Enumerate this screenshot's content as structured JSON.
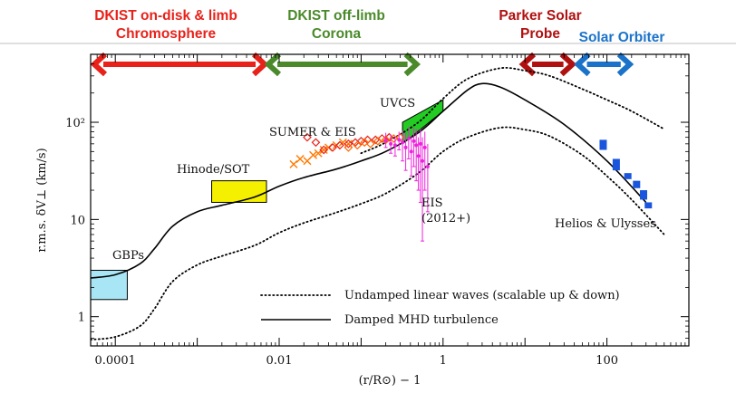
{
  "chart_data": {
    "type": "line",
    "xlabel": "(r/R⊙) − 1",
    "ylabel": "r.m.s.  δV⊥  (km/s)",
    "xscale": "log",
    "yscale": "log",
    "xlim": [
      5e-05,
      1000
    ],
    "ylim": [
      0.5,
      500
    ],
    "x_ticks": [
      "0.0001",
      "0.01",
      "1",
      "100"
    ],
    "y_ticks": [
      "1",
      "10",
      "10²"
    ],
    "legend": {
      "placement": "bottom-right",
      "entries": [
        {
          "label": "Undamped linear waves (scalable up & down)",
          "style": "dotted"
        },
        {
          "label": "Damped MHD turbulence",
          "style": "solid"
        }
      ]
    },
    "series": [
      {
        "id": "damped",
        "style": "solid",
        "color": "#000000",
        "x": [
          5e-05,
          0.0001,
          0.0002,
          0.0003,
          0.0005,
          0.001,
          0.002,
          0.005,
          0.01,
          0.02,
          0.05,
          0.1,
          0.2,
          0.5,
          1,
          2,
          3,
          5,
          10,
          30,
          100,
          300
        ],
        "y": [
          2.5,
          2.7,
          3.5,
          5,
          8.5,
          12,
          14,
          17,
          22,
          27,
          33,
          40,
          50,
          78,
          130,
          215,
          250,
          230,
          170,
          95,
          40,
          15
        ]
      },
      {
        "id": "undamped-upper",
        "style": "dotted",
        "color": "#000000",
        "x": [
          0.1,
          0.2,
          0.5,
          1,
          2,
          5,
          10,
          20,
          50,
          100,
          200,
          500
        ],
        "y": [
          48,
          62,
          100,
          175,
          280,
          360,
          340,
          300,
          220,
          170,
          130,
          85
        ]
      },
      {
        "id": "undamped-lower",
        "style": "dotted",
        "color": "#000000",
        "x": [
          5e-05,
          0.0001,
          0.0002,
          0.0003,
          0.0005,
          0.001,
          0.002,
          0.005,
          0.01,
          0.02,
          0.05,
          0.1,
          0.2,
          0.5,
          1,
          2,
          5,
          10,
          20,
          50,
          100,
          200,
          500
        ],
        "y": [
          0.58,
          0.62,
          0.8,
          1.2,
          2.3,
          3.4,
          4.2,
          5.4,
          7.3,
          9.2,
          11.8,
          14.5,
          18.5,
          30,
          50,
          70,
          88,
          84,
          72,
          46,
          28,
          16,
          7
        ]
      }
    ],
    "observations": [
      {
        "name": "GBPs",
        "kind": "box",
        "color": "#a8e6f5",
        "x": [
          5e-05,
          0.00014
        ],
        "y": [
          1.5,
          3
        ]
      },
      {
        "name": "Hinode/SOT",
        "kind": "box",
        "color": "#f5f000",
        "x": [
          0.0015,
          0.007
        ],
        "y": [
          15,
          25
        ]
      },
      {
        "name": "UVCS",
        "kind": "band",
        "color": "#22cc22",
        "x": [
          0.32,
          1
        ],
        "y_low": [
          60,
          130
        ],
        "y_high": [
          100,
          170
        ]
      },
      {
        "name": "SUMER & EIS",
        "kind": "markers",
        "markers": [
          {
            "marker": "x",
            "color": "#ff7a00",
            "x": [
              0.015,
              0.018,
              0.022,
              0.026,
              0.03,
              0.035,
              0.04,
              0.05,
              0.06,
              0.07
            ],
            "y": [
              37,
              42,
              40,
              46,
              48,
              52,
              55,
              58,
              62,
              60
            ]
          },
          {
            "marker": "diamond",
            "color": "#e8211a",
            "x": [
              0.022,
              0.028,
              0.035,
              0.045,
              0.055,
              0.07,
              0.085,
              0.1,
              0.12,
              0.15,
              0.18,
              0.22
            ],
            "y": [
              70,
              62,
              52,
              55,
              58,
              60,
              62,
              64,
              66,
              66,
              68,
              70
            ]
          },
          {
            "marker": "diamond",
            "color": "#ff6600",
            "x": [
              0.07,
              0.09,
              0.11,
              0.13,
              0.16,
              0.2,
              0.25,
              0.3
            ],
            "y": [
              55,
              58,
              62,
              60,
              64,
              66,
              68,
              70
            ]
          }
        ]
      },
      {
        "name": "EIS\n(2012+)",
        "kind": "errorbars",
        "color": "#ee22dd",
        "points": [
          {
            "x": 0.2,
            "y": 65,
            "lo": 55,
            "hi": 78
          },
          {
            "x": 0.23,
            "y": 60,
            "lo": 48,
            "hi": 75
          },
          {
            "x": 0.26,
            "y": 58,
            "lo": 45,
            "hi": 72
          },
          {
            "x": 0.29,
            "y": 66,
            "lo": 52,
            "hi": 80
          },
          {
            "x": 0.32,
            "y": 62,
            "lo": 40,
            "hi": 82
          },
          {
            "x": 0.35,
            "y": 55,
            "lo": 32,
            "hi": 78
          },
          {
            "x": 0.38,
            "y": 68,
            "lo": 42,
            "hi": 90
          },
          {
            "x": 0.41,
            "y": 50,
            "lo": 28,
            "hi": 72
          },
          {
            "x": 0.44,
            "y": 64,
            "lo": 35,
            "hi": 88
          },
          {
            "x": 0.47,
            "y": 58,
            "lo": 25,
            "hi": 85
          },
          {
            "x": 0.5,
            "y": 45,
            "lo": 20,
            "hi": 70
          },
          {
            "x": 0.53,
            "y": 60,
            "lo": 15,
            "hi": 85
          },
          {
            "x": 0.56,
            "y": 40,
            "lo": 6,
            "hi": 70
          },
          {
            "x": 0.6,
            "y": 55,
            "lo": 20,
            "hi": 80
          },
          {
            "x": 0.65,
            "y": 35,
            "lo": 12,
            "hi": 60
          }
        ]
      },
      {
        "name": "Helios & Ulysses",
        "kind": "squares",
        "color": "#1a55dd",
        "x": [
          90,
          130,
          180,
          230,
          280,
          320
        ],
        "y": [
          58,
          36,
          28,
          23,
          18,
          14
        ],
        "ylo": [
          52,
          32,
          26,
          21,
          16,
          13
        ],
        "yhi": [
          66,
          42,
          30,
          25,
          20,
          15
        ]
      }
    ],
    "missions": [
      {
        "name": "DKIST on-disk & limb\nChromosphere",
        "color": "#e8211a",
        "x": [
          5e-05,
          0.007
        ]
      },
      {
        "name": "DKIST off-limb\nCorona",
        "color": "#4a8a2a",
        "x": [
          0.007,
          0.5
        ]
      },
      {
        "name": "Parker Solar\nProbe",
        "color": "#b01010",
        "x": [
          9,
          40
        ]
      },
      {
        "name": "Solar Orbiter",
        "color": "#1a73c9",
        "x": [
          42,
          200
        ]
      }
    ]
  }
}
